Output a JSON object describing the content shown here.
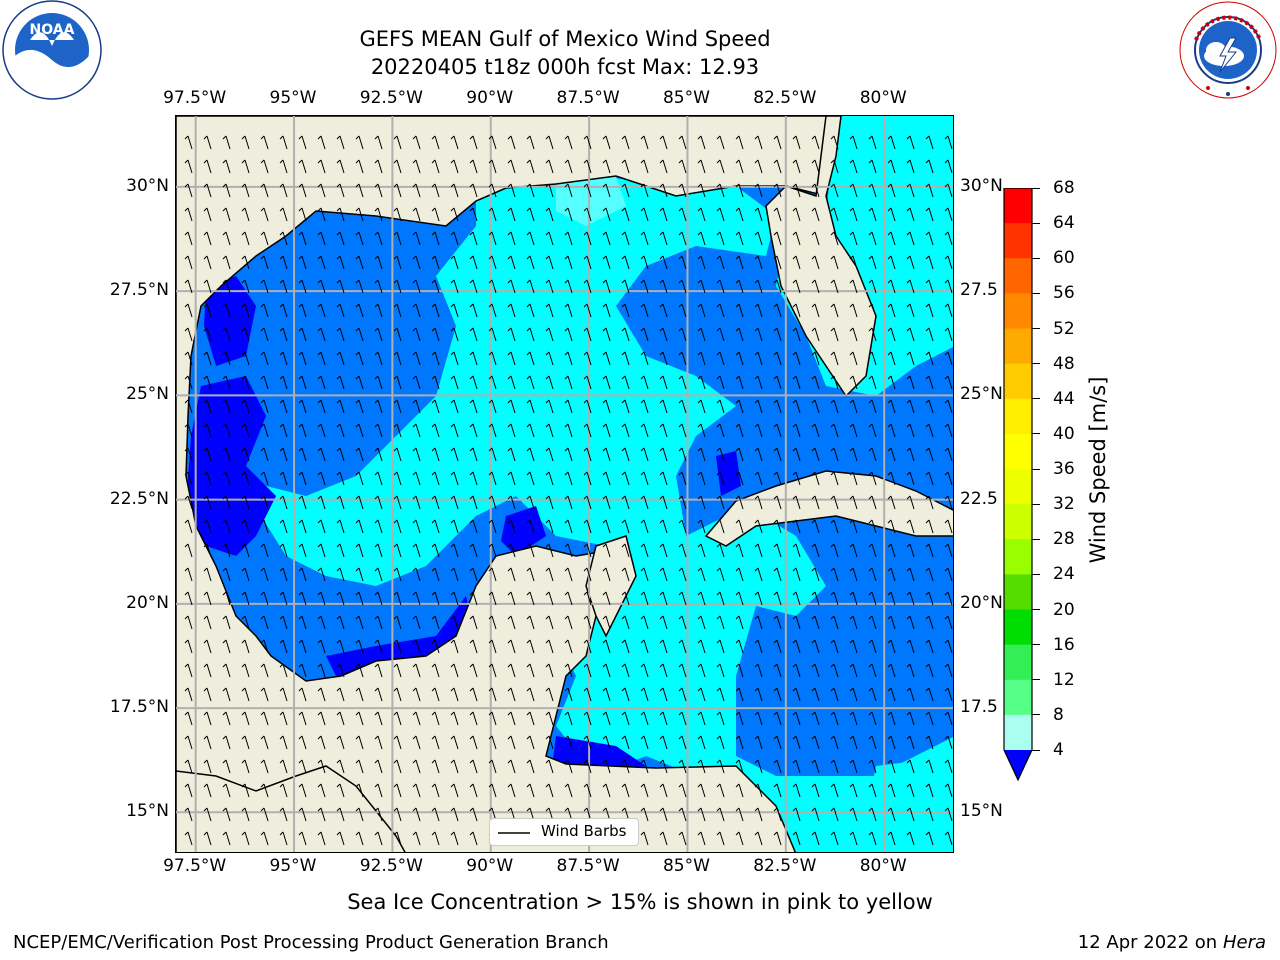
{
  "title": {
    "line1": "GEFS MEAN Gulf of Mexico Wind Speed",
    "line2": "20220405 t18z 000h fcst   Max: 12.93"
  },
  "logos": {
    "left": {
      "name": "noaa-logo",
      "text": "NOAA",
      "ring_text": "NATIONAL OCEANIC AND ATMOSPHERIC ADMINISTRATION · U.S. DEPARTMENT OF COMMERCE"
    },
    "right": {
      "name": "nws-logo",
      "ring_text": "NATIONAL WEATHER SERVICE"
    }
  },
  "axes": {
    "lon_labels": [
      "97.5°W",
      "95°W",
      "92.5°W",
      "90°W",
      "87.5°W",
      "85°W",
      "82.5°W",
      "80°W"
    ],
    "lon_values": [
      -97.5,
      -95,
      -92.5,
      -90,
      -87.5,
      -85,
      -82.5,
      -80
    ],
    "lat_labels_left": [
      "30°N",
      "27.5°N",
      "25°N",
      "22.5°N",
      "20°N",
      "17.5°N",
      "15°N"
    ],
    "lat_labels_right": [
      "30°N",
      "27.5",
      "25°N",
      "22.5",
      "20°N",
      "17.5",
      "15°N"
    ],
    "lat_values": [
      30,
      27.5,
      25,
      22.5,
      20,
      17.5,
      15
    ],
    "extent": {
      "lon": [
        -98,
        -78.2
      ],
      "lat": [
        14,
        31.7
      ]
    }
  },
  "colorbar": {
    "label": "Wind Speed [m/s]",
    "ticks": [
      "68",
      "64",
      "60",
      "56",
      "52",
      "48",
      "44",
      "40",
      "36",
      "32",
      "28",
      "24",
      "20",
      "16",
      "12",
      "8",
      "4"
    ],
    "colors": [
      "#ff0000",
      "#ff3300",
      "#ff6600",
      "#ff8800",
      "#ffaa00",
      "#ffcc00",
      "#ffee00",
      "#ffff00",
      "#eeff00",
      "#ccff00",
      "#99ff00",
      "#55dd00",
      "#00dd00",
      "#33ee55",
      "#55ff88",
      "#aaffee",
      "#55ffff",
      "#00ffff",
      "#0077ff"
    ],
    "under_color": "#0000ff",
    "extend": "min"
  },
  "legend": {
    "label": "Wind Barbs"
  },
  "colors": {
    "land": "#efeddc",
    "dark_blue": "#0000ff",
    "mid_blue": "#0077ff",
    "cyan": "#00ffff",
    "light_cyan": "#55ffff",
    "grid": "#b0b0b0"
  },
  "note": "Sea Ice Concentration > 15% is shown in pink to yellow",
  "footer": {
    "left": "NCEP/EMC/Verification Post Processing Product Generation Branch",
    "right_date": "12 Apr 2022 on ",
    "right_host": "Hera"
  }
}
